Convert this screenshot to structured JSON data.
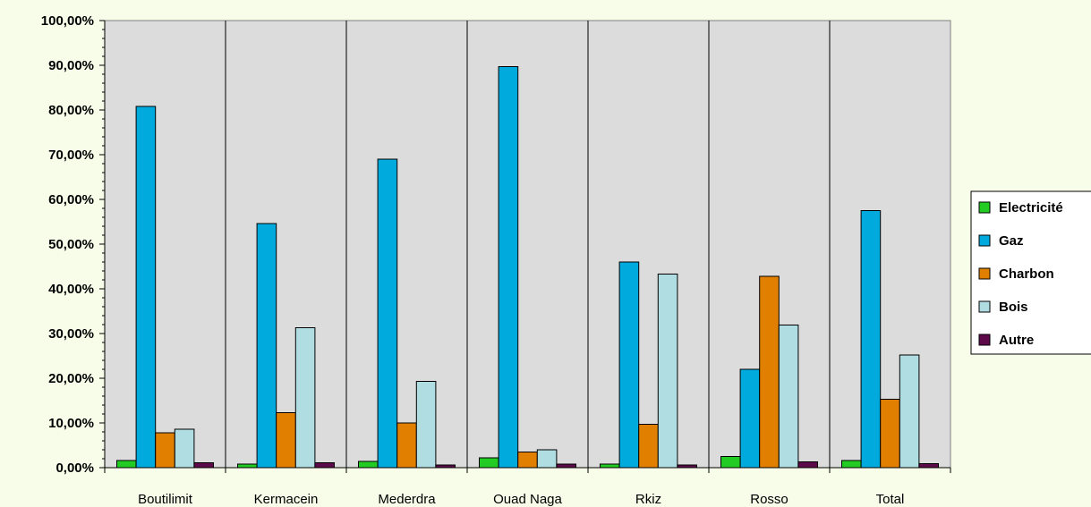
{
  "chart_data": {
    "type": "bar",
    "title": "",
    "xlabel": "",
    "ylabel": "",
    "ylim": [
      0,
      100
    ],
    "ytick_step": 10,
    "ytick_labels": [
      "0,00%",
      "10,00%",
      "20,00%",
      "30,00%",
      "40,00%",
      "50,00%",
      "60,00%",
      "70,00%",
      "80,00%",
      "90,00%",
      "100,00%"
    ],
    "grid": false,
    "legend_position": "right",
    "categories": [
      "Boutilimit",
      "Kermacein",
      "Mederdra",
      "Ouad Naga",
      "Rkiz",
      "Rosso",
      "Total"
    ],
    "series": [
      {
        "name": "Electricité",
        "color": "#22cc22",
        "values": [
          1.6,
          0.8,
          1.4,
          2.2,
          0.8,
          2.5,
          1.6
        ]
      },
      {
        "name": "Gaz",
        "color": "#00aadd",
        "values": [
          80.8,
          54.6,
          69.0,
          89.7,
          46.0,
          22.0,
          57.5
        ]
      },
      {
        "name": "Charbon",
        "color": "#e07f00",
        "values": [
          7.8,
          12.3,
          10.0,
          3.5,
          9.7,
          42.8,
          15.3
        ]
      },
      {
        "name": "Bois",
        "color": "#b0dde2",
        "values": [
          8.6,
          31.3,
          19.3,
          4.0,
          43.3,
          31.9,
          25.2
        ]
      },
      {
        "name": "Autre",
        "color": "#5c0a4a",
        "values": [
          1.1,
          1.1,
          0.6,
          0.8,
          0.6,
          1.3,
          0.9
        ]
      }
    ],
    "colors": {
      "plot_background": "#dcdcdc",
      "page_background": "#f7fde9"
    }
  }
}
